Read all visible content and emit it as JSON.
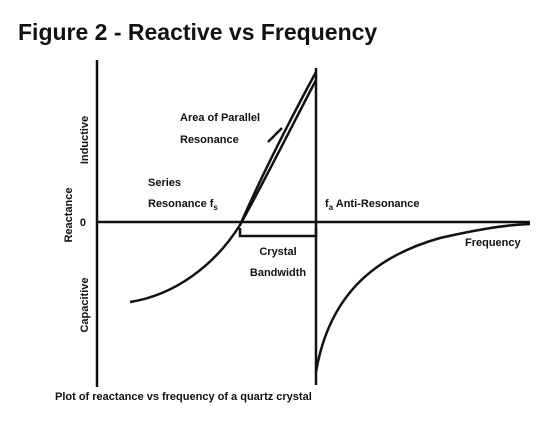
{
  "title": "Figure 2 - Reactive vs Frequency",
  "axis_labels": {
    "inductive": "Inductive",
    "reactance": "Reactance",
    "capacitive": "Capacitive",
    "zero": "0",
    "frequency": "Frequency"
  },
  "annotations": {
    "parallel": [
      "Area of Parallel",
      "Resonance"
    ],
    "series": {
      "line1": "Series",
      "line2": "Resonance f",
      "sub": "s"
    },
    "anti": {
      "symbol": "f",
      "sub": "a",
      "text": " Anti-Resonance"
    },
    "bandwidth": [
      "Crystal",
      "Bandwidth"
    ]
  },
  "caption": "Plot of reactance vs frequency of a quartz crystal"
}
